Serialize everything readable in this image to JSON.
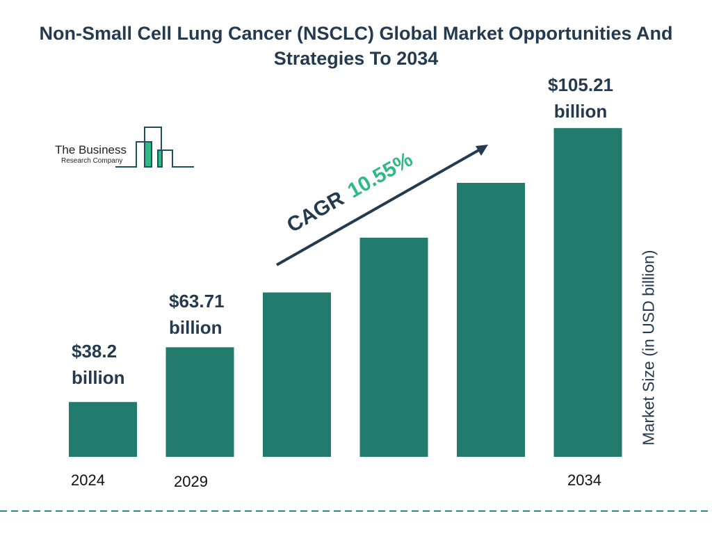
{
  "logo": {
    "line1": "The Business",
    "line2": "Research Company"
  },
  "colors": {
    "bar": "#227b6c",
    "text": "#243a4f",
    "accent": "#2fb985",
    "dash": "#2a8a80"
  },
  "cagr": {
    "label": "CAGR",
    "value": "10.55%"
  },
  "chart_data": {
    "type": "bar",
    "title": "Non-Small Cell Lung Cancer (NSCLC) Global Market Opportunities And Strategies To 2034",
    "ylabel": "Market Size (in USD billion)",
    "categories": [
      "2024",
      "2029",
      "",
      "",
      "",
      "2034"
    ],
    "values": [
      38.2,
      63.71,
      null,
      null,
      null,
      105.21
    ],
    "data_labels": [
      "$38.2 billion",
      "$63.71 billion",
      "",
      "",
      "",
      "$105.21 billion"
    ],
    "grid": false
  }
}
